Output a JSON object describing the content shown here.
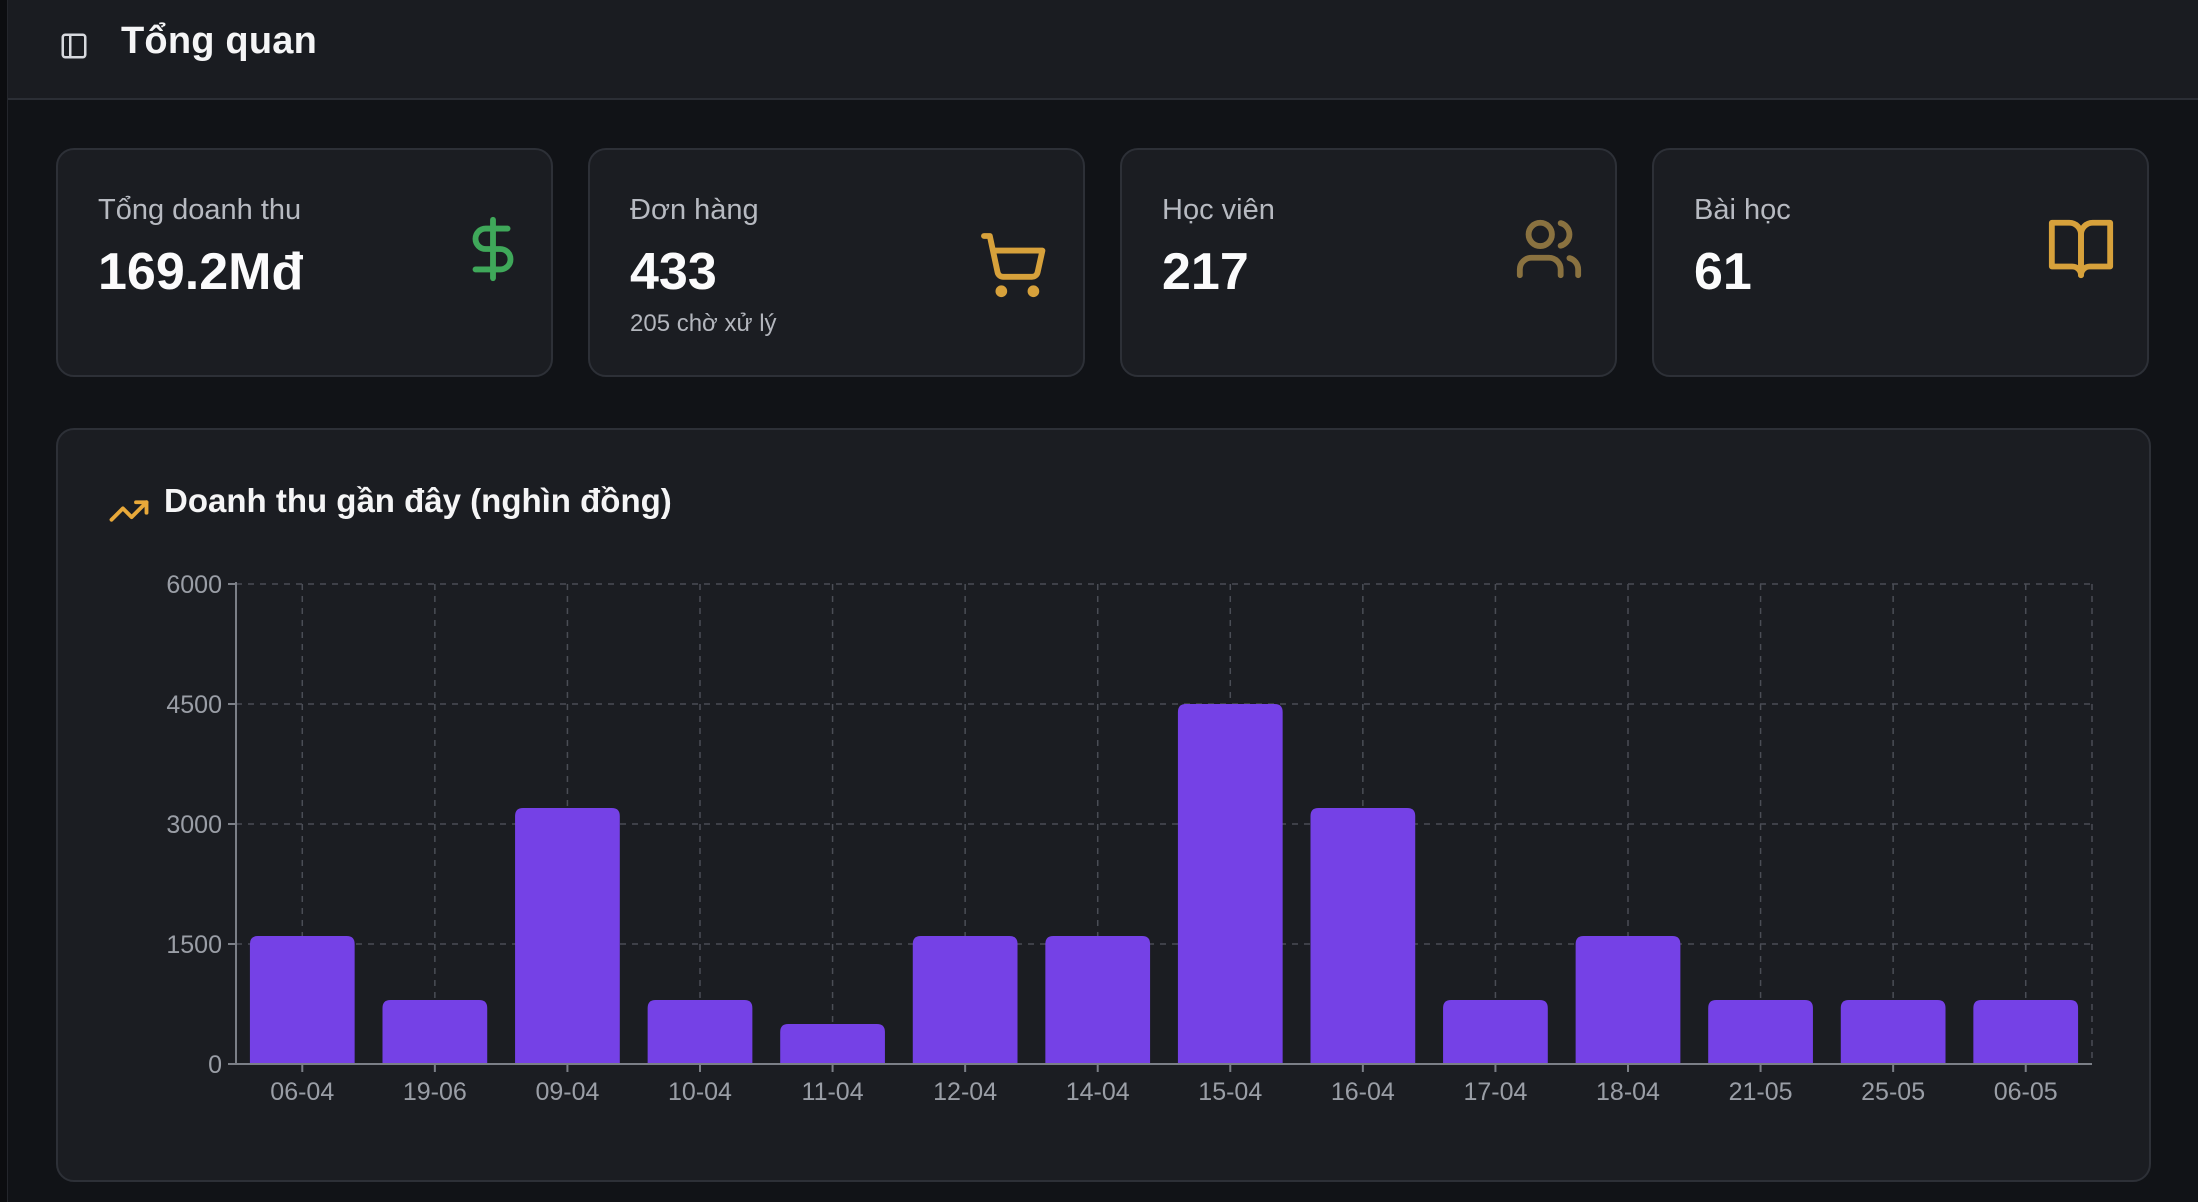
{
  "header": {
    "title": "Tổng quan",
    "toggle_icon": "sidebar-toggle-icon"
  },
  "stats": [
    {
      "label": "Tổng doanh thu",
      "value": "169.2Mđ",
      "sub": "",
      "icon": "dollar-icon",
      "color": "#3fa85a"
    },
    {
      "label": "Đơn hàng",
      "value": "433",
      "sub": "205 chờ xử lý",
      "icon": "cart-icon",
      "color": "#d7a13b"
    },
    {
      "label": "Học viên",
      "value": "217",
      "sub": "",
      "icon": "users-icon",
      "color": "#8a7240"
    },
    {
      "label": "Bài học",
      "value": "61",
      "sub": "",
      "icon": "book-icon",
      "color": "#d7a13b"
    }
  ],
  "chart": {
    "title": "Doanh thu gần đây (nghìn đồng)",
    "title_icon": "trending-up-icon",
    "accent": "#e8a93a"
  },
  "chart_data": {
    "type": "bar",
    "categories": [
      "06-04",
      "19-06",
      "09-04",
      "10-04",
      "11-04",
      "12-04",
      "14-04",
      "15-04",
      "16-04",
      "17-04",
      "18-04",
      "21-05",
      "25-05",
      "06-05"
    ],
    "values": [
      1600,
      800,
      3200,
      800,
      500,
      1600,
      1600,
      4500,
      3200,
      800,
      1600,
      800,
      800,
      800
    ],
    "ylim": [
      0,
      6000
    ],
    "yticks": [
      0,
      1500,
      3000,
      4500,
      6000
    ],
    "grid": true,
    "bar_color": "#7541e6",
    "xlabel": "",
    "ylabel": ""
  }
}
